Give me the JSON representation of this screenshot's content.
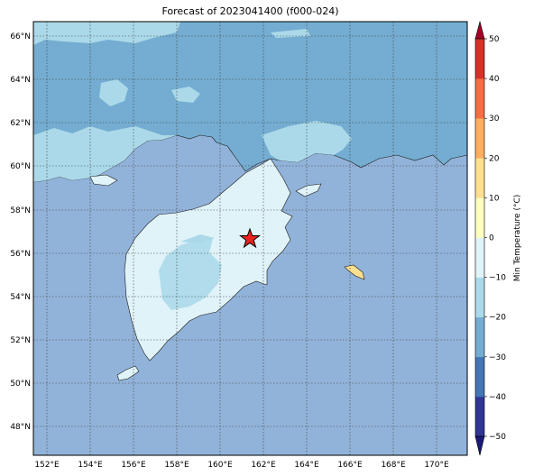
{
  "title": "Forecast of 2023041400 (f000-024)",
  "lat_labels": [
    "66°N",
    "64°N",
    "62°N",
    "60°N",
    "58°N",
    "56°N",
    "54°N",
    "52°N",
    "50°N",
    "48°N"
  ],
  "lon_labels": [
    "152°E",
    "154°E",
    "156°E",
    "158°E",
    "160°E",
    "162°E",
    "164°E",
    "166°E",
    "168°E",
    "170°E"
  ],
  "colorbar": {
    "title": "Min Temperature (°C)",
    "ticks": [
      "50",
      "40",
      "30",
      "20",
      "10",
      "0",
      "−10",
      "−20",
      "−30",
      "−40",
      "−50"
    ],
    "colors": [
      "#313695",
      "#4575b4",
      "#74add1",
      "#abd9e9",
      "#e0f3f8",
      "#ffffbf",
      "#fee090",
      "#fdae61",
      "#f46d43",
      "#d73027"
    ],
    "under_color": "#1a1a7a",
    "over_color": "#a50026"
  },
  "marker": {
    "name": "star",
    "color": "#e8231f"
  },
  "colors": {
    "ocean": "#92b3d9",
    "cold_land": "#74add1",
    "cool": "#abd9e9",
    "mild": "#e0f3f8",
    "warm": "#fee090"
  }
}
